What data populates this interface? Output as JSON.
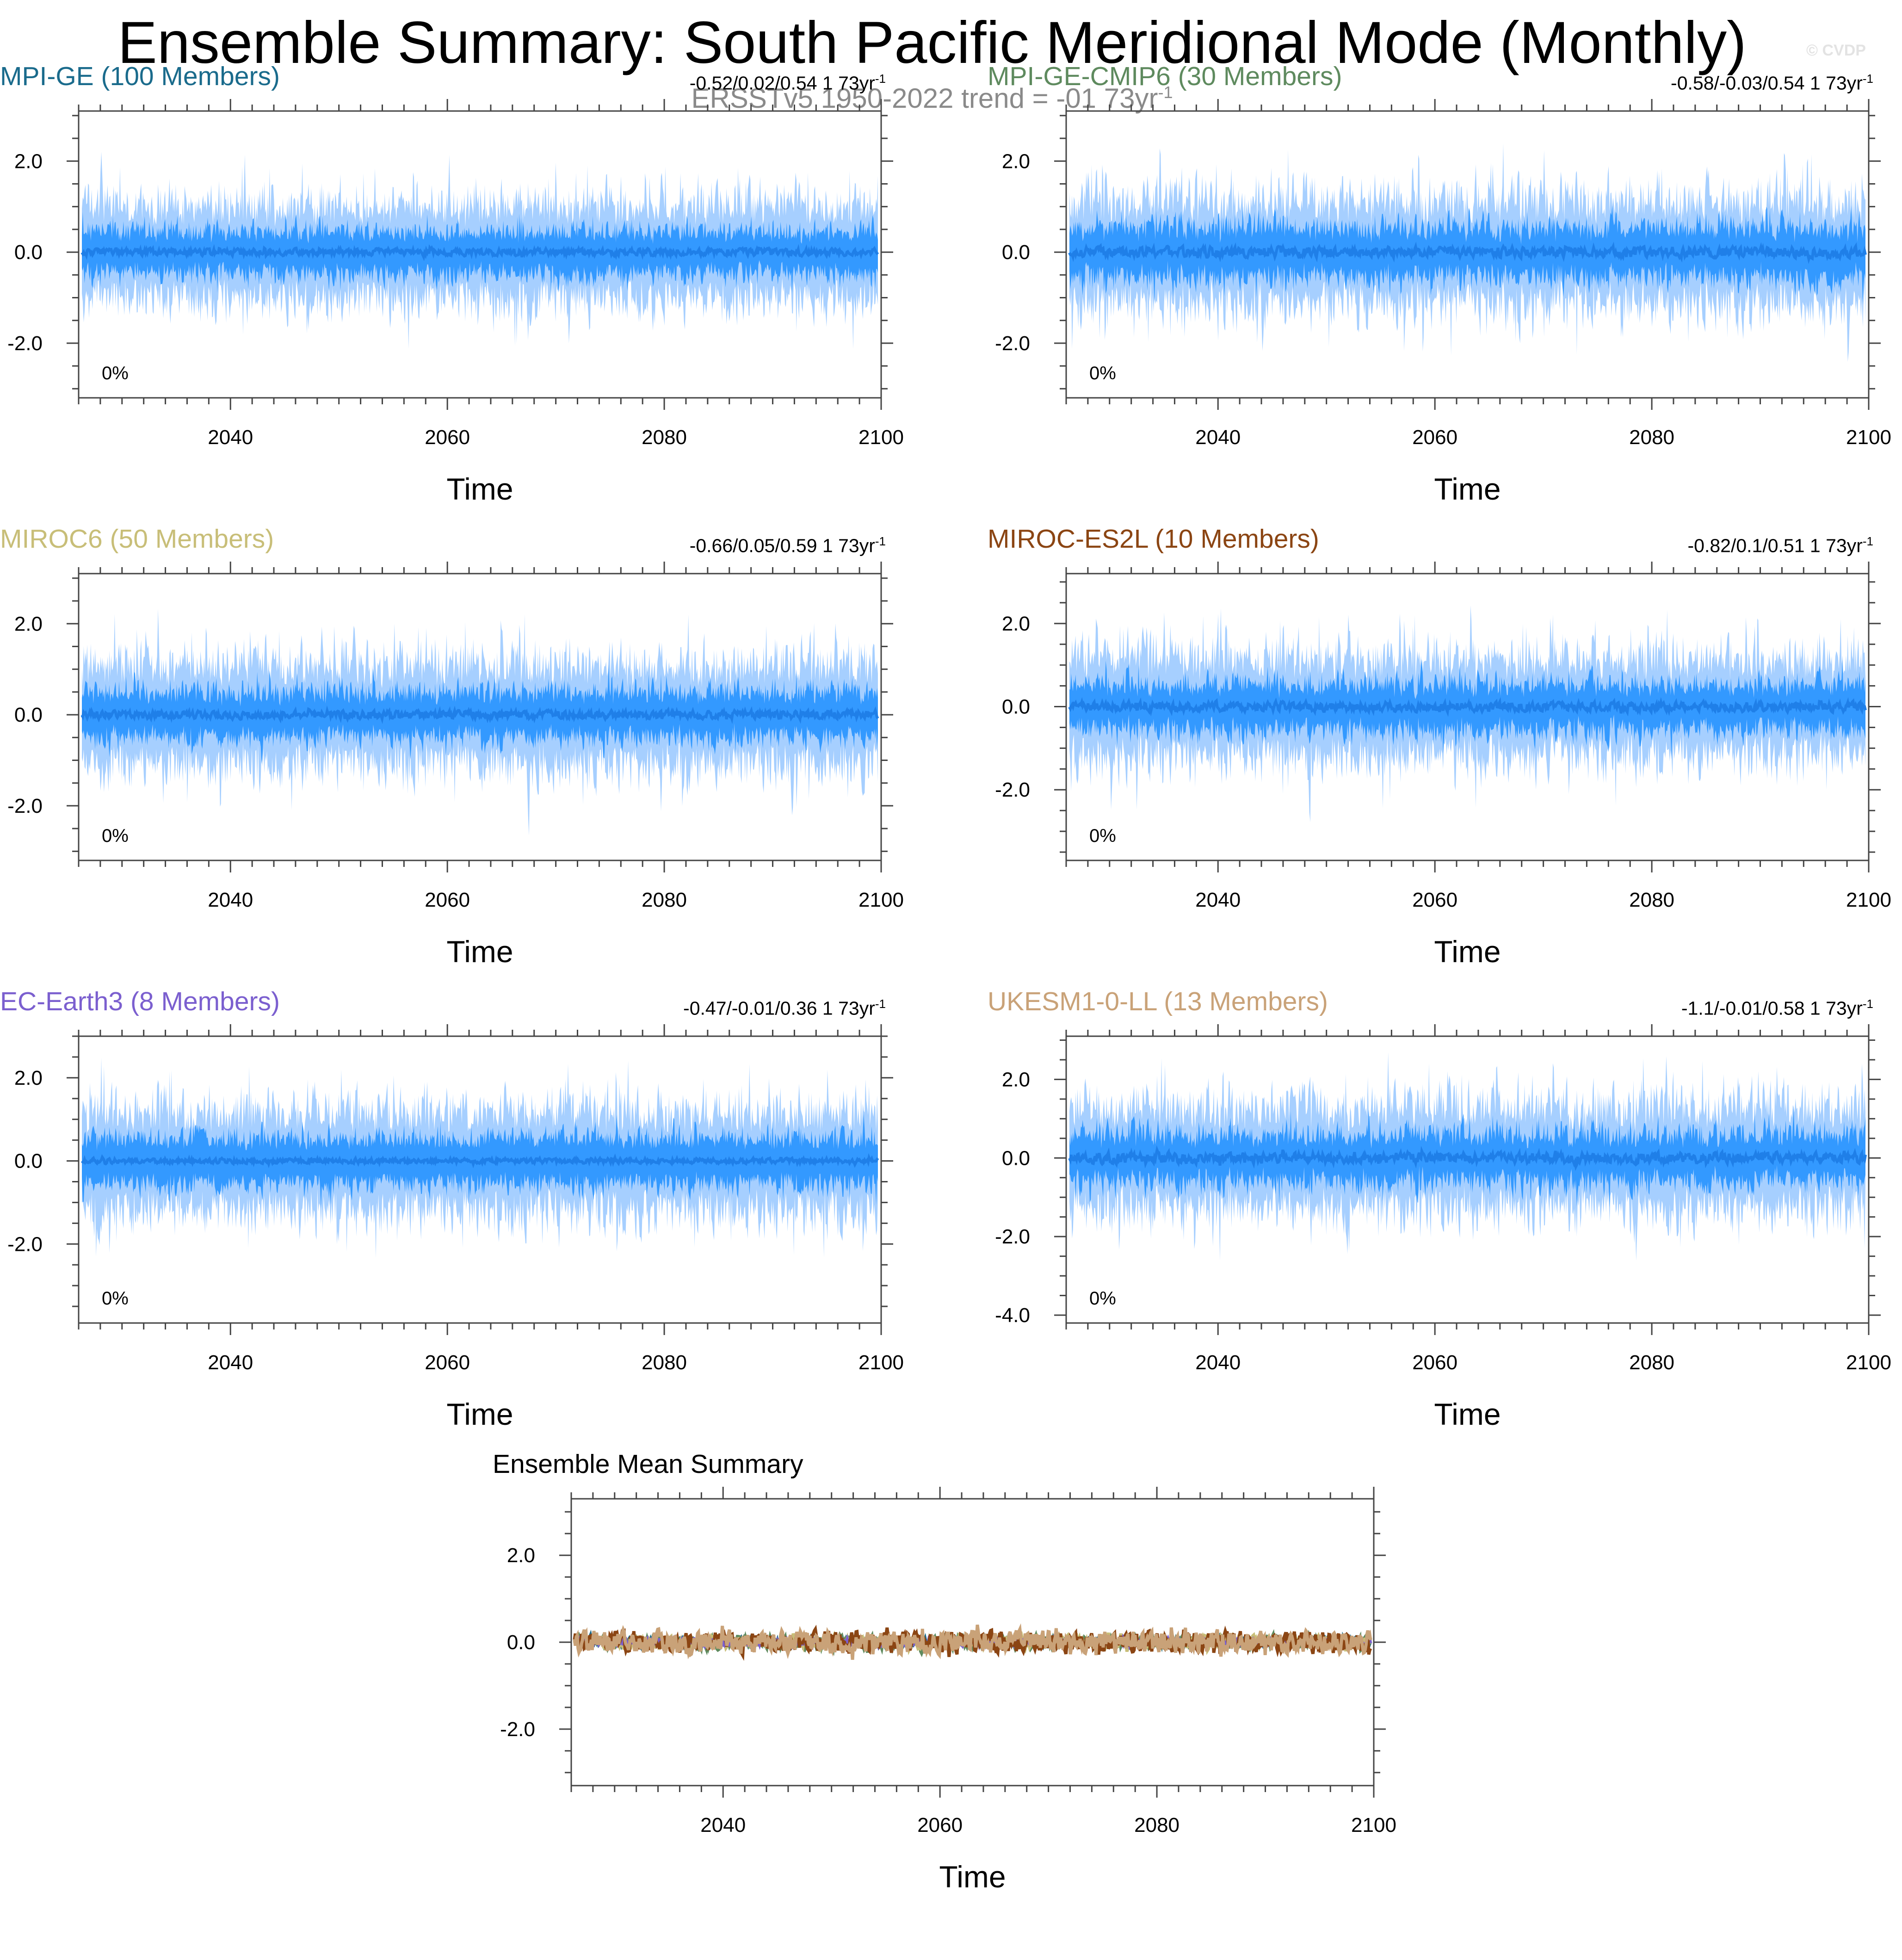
{
  "title": "Ensemble Summary: South Pacific Meridional Mode (Monthly)",
  "subtitle": {
    "text": "ERSSTv5 1950-2022 trend = -01 73yr",
    "sup": "-1"
  },
  "watermark": "© CVDP",
  "colors": {
    "outer_band": "#a6cfff",
    "inner_band": "#3399ff",
    "mean_line": "#1f7fe8",
    "axis": "#444444"
  },
  "chart_data": [
    {
      "id": "mpi-ge",
      "type": "area",
      "title": "MPI-GE (100 Members)",
      "title_color": "#1a6b8c",
      "stats": "-0.52/0.02/0.54 1 73yr",
      "stats_sup": "-1",
      "xlabel": "Time",
      "xlim": [
        2026,
        2100
      ],
      "ylim": [
        -3.2,
        3.1
      ],
      "xticks": [
        2040,
        2060,
        2080,
        2100
      ],
      "yticks": [
        -2.0,
        0.0,
        2.0
      ],
      "ytick_labels": [
        "-2.0",
        "0.0",
        "2.0"
      ],
      "percent_label": "0%",
      "series": [
        {
          "name": "ensemble range",
          "amp": 1.75
        },
        {
          "name": "inner 10-90% spread",
          "amp": 0.85
        },
        {
          "name": "ensemble mean",
          "amp": 0.1
        }
      ]
    },
    {
      "id": "mpi-ge-cmip6",
      "type": "area",
      "title": "MPI-GE-CMIP6 (30 Members)",
      "title_color": "#5e8a5e",
      "stats": "-0.58/-0.03/0.54 1 73yr",
      "stats_sup": "-1",
      "xlabel": "Time",
      "xlim": [
        2026,
        2100
      ],
      "ylim": [
        -3.2,
        3.1
      ],
      "xticks": [
        2040,
        2060,
        2080,
        2100
      ],
      "yticks": [
        -2.0,
        0.0,
        2.0
      ],
      "ytick_labels": [
        "-2.0",
        "0.0",
        "2.0"
      ],
      "percent_label": "0%",
      "series": [
        {
          "name": "ensemble range",
          "amp": 1.9
        },
        {
          "name": "inner 10-90% spread",
          "amp": 1.0
        },
        {
          "name": "ensemble mean",
          "amp": 0.15
        }
      ]
    },
    {
      "id": "miroc6",
      "type": "area",
      "title": "MIROC6 (50 Members)",
      "title_color": "#c8be78",
      "stats": "-0.66/0.05/0.59 1 73yr",
      "stats_sup": "-1",
      "xlabel": "Time",
      "xlim": [
        2026,
        2100
      ],
      "ylim": [
        -3.2,
        3.1
      ],
      "xticks": [
        2040,
        2060,
        2080,
        2100
      ],
      "yticks": [
        -2.0,
        0.0,
        2.0
      ],
      "ytick_labels": [
        "-2.0",
        "0.0",
        "2.0"
      ],
      "percent_label": "0%",
      "series": [
        {
          "name": "ensemble range",
          "amp": 1.85
        },
        {
          "name": "inner 10-90% spread",
          "amp": 0.9
        },
        {
          "name": "ensemble mean",
          "amp": 0.12
        }
      ]
    },
    {
      "id": "miroc-es2l",
      "type": "area",
      "title": "MIROC-ES2L (10 Members)",
      "title_color": "#8b4513",
      "stats": "-0.82/0.1/0.51 1 73yr",
      "stats_sup": "-1",
      "xlabel": "Time",
      "xlim": [
        2026,
        2100
      ],
      "ylim": [
        -3.7,
        3.2
      ],
      "xticks": [
        2040,
        2060,
        2080,
        2100
      ],
      "yticks": [
        -2.0,
        0.0,
        2.0
      ],
      "ytick_labels": [
        "-2.0",
        "0.0",
        "2.0"
      ],
      "percent_label": "0%",
      "series": [
        {
          "name": "ensemble range",
          "amp": 2.0
        },
        {
          "name": "inner 10-90% spread",
          "amp": 1.0
        },
        {
          "name": "ensemble mean",
          "amp": 0.15
        }
      ]
    },
    {
      "id": "ec-earth3",
      "type": "area",
      "title": "EC-Earth3 (8 Members)",
      "title_color": "#7b5fcf",
      "stats": "-0.47/-0.01/0.36 1 73yr",
      "stats_sup": "-1",
      "xlabel": "Time",
      "xlim": [
        2026,
        2100
      ],
      "ylim": [
        -3.9,
        3.0
      ],
      "xticks": [
        2040,
        2060,
        2080,
        2100
      ],
      "yticks": [
        -2.0,
        0.0,
        2.0
      ],
      "ytick_labels": [
        "-2.0",
        "0.0",
        "2.0"
      ],
      "percent_label": "0%",
      "series": [
        {
          "name": "ensemble range",
          "amp": 2.0
        },
        {
          "name": "inner 10-90% spread",
          "amp": 1.0
        },
        {
          "name": "ensemble mean",
          "amp": 0.08
        }
      ]
    },
    {
      "id": "ukesm1-0-ll",
      "type": "area",
      "title": "UKESM1-0-LL (13 Members)",
      "title_color": "#c9a278",
      "stats": "-1.1/-0.01/0.58 1 73yr",
      "stats_sup": "-1",
      "xlabel": "Time",
      "xlim": [
        2026,
        2100
      ],
      "ylim": [
        -4.2,
        3.1
      ],
      "xticks": [
        2040,
        2060,
        2080,
        2100
      ],
      "yticks": [
        -4.0,
        -2.0,
        0.0,
        2.0
      ],
      "ytick_labels": [
        "-4.0",
        "-2.0",
        "0.0",
        "2.0"
      ],
      "percent_label": "0%",
      "series": [
        {
          "name": "ensemble range",
          "amp": 2.2
        },
        {
          "name": "inner 10-90% spread",
          "amp": 1.1
        },
        {
          "name": "ensemble mean",
          "amp": 0.18
        }
      ]
    },
    {
      "id": "ensemble-mean-summary",
      "type": "line",
      "title": "Ensemble Mean Summary",
      "title_color": "#000000",
      "xlabel": "Time",
      "xlim": [
        2026,
        2100
      ],
      "ylim": [
        -3.3,
        3.3
      ],
      "xticks": [
        2040,
        2060,
        2080,
        2100
      ],
      "yticks": [
        -2.0,
        0.0,
        2.0
      ],
      "ytick_labels": [
        "-2.0",
        "0.0",
        "2.0"
      ],
      "series": [
        {
          "name": "MPI-GE",
          "color": "#1a6b8c",
          "amp": 0.12
        },
        {
          "name": "MPI-GE-CMIP6",
          "color": "#5e8a5e",
          "amp": 0.2
        },
        {
          "name": "MIROC6",
          "color": "#c8be78",
          "amp": 0.18
        },
        {
          "name": "EC-Earth3",
          "color": "#7b5fcf",
          "amp": 0.1
        },
        {
          "name": "MIROC-ES2L",
          "color": "#8b4513",
          "amp": 0.32
        },
        {
          "name": "UKESM1-0-LL",
          "color": "#c9a278",
          "amp": 0.34
        }
      ]
    }
  ]
}
